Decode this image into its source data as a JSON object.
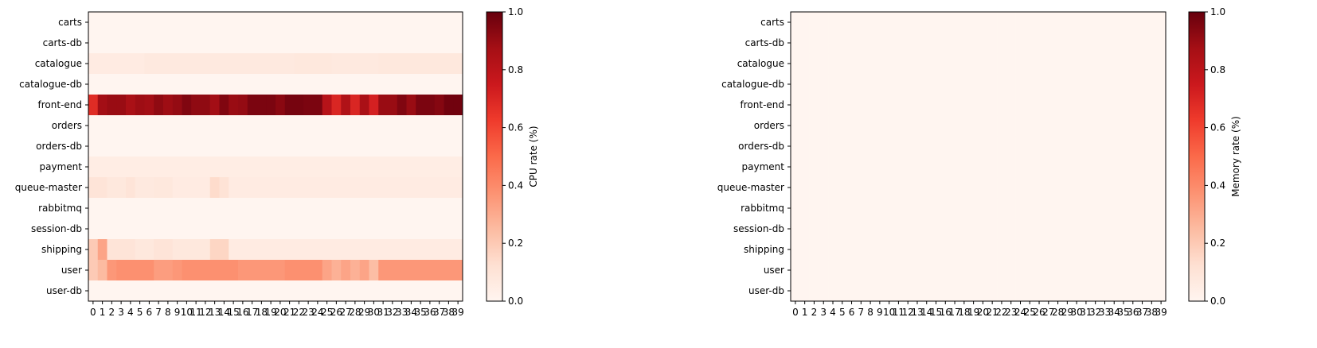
{
  "chart_data": [
    {
      "type": "heatmap",
      "ylabels": [
        "carts",
        "carts-db",
        "catalogue",
        "catalogue-db",
        "front-end",
        "orders",
        "orders-db",
        "payment",
        "queue-master",
        "rabbitmq",
        "session-db",
        "shipping",
        "user",
        "user-db"
      ],
      "xlabels": [
        "0",
        "1",
        "2",
        "3",
        "4",
        "5",
        "6",
        "7",
        "8",
        "9",
        "10",
        "11",
        "12",
        "13",
        "14",
        "15",
        "16",
        "17",
        "18",
        "19",
        "20",
        "21",
        "22",
        "23",
        "24",
        "25",
        "26",
        "27",
        "28",
        "29",
        "30",
        "31",
        "32",
        "33",
        "34",
        "35",
        "36",
        "37",
        "38",
        "39"
      ],
      "colorbar": {
        "label": "CPU rate (%)",
        "min": 0,
        "max": 1,
        "ticks": [
          "0.0",
          "0.2",
          "0.4",
          "0.6",
          "0.8",
          "1.0"
        ]
      },
      "colormap": "Reds",
      "values": [
        [
          0,
          0,
          0,
          0,
          0,
          0,
          0,
          0,
          0,
          0,
          0,
          0,
          0,
          0,
          0,
          0,
          0,
          0,
          0,
          0,
          0,
          0,
          0,
          0,
          0,
          0,
          0,
          0,
          0,
          0,
          0,
          0,
          0,
          0,
          0,
          0,
          0,
          0,
          0,
          0
        ],
        [
          0,
          0,
          0,
          0,
          0,
          0,
          0,
          0,
          0,
          0,
          0,
          0,
          0,
          0,
          0,
          0,
          0,
          0,
          0,
          0,
          0,
          0,
          0,
          0,
          0,
          0,
          0,
          0,
          0,
          0,
          0,
          0,
          0,
          0,
          0,
          0,
          0,
          0,
          0,
          0
        ],
        [
          0.06,
          0.06,
          0.06,
          0.06,
          0.06,
          0.06,
          0.07,
          0.07,
          0.07,
          0.07,
          0.07,
          0.07,
          0.07,
          0.07,
          0.07,
          0.07,
          0.07,
          0.07,
          0.07,
          0.07,
          0.07,
          0.07,
          0.08,
          0.08,
          0.08,
          0.08,
          0.07,
          0.07,
          0.07,
          0.07,
          0.07,
          0.08,
          0.08,
          0.08,
          0.08,
          0.08,
          0.08,
          0.08,
          0.08,
          0.08
        ],
        [
          0,
          0,
          0,
          0,
          0,
          0,
          0,
          0,
          0,
          0,
          0,
          0,
          0,
          0,
          0,
          0,
          0,
          0,
          0,
          0,
          0,
          0,
          0,
          0,
          0,
          0,
          0,
          0,
          0,
          0,
          0,
          0,
          0,
          0,
          0,
          0,
          0,
          0,
          0,
          0
        ],
        [
          0.68,
          0.88,
          0.9,
          0.9,
          0.86,
          0.89,
          0.88,
          0.92,
          0.89,
          0.91,
          0.95,
          0.92,
          0.92,
          0.88,
          0.95,
          0.9,
          0.91,
          0.96,
          0.96,
          0.96,
          0.93,
          0.97,
          0.97,
          0.96,
          0.96,
          0.82,
          0.7,
          0.84,
          0.7,
          0.86,
          0.72,
          0.9,
          0.9,
          0.95,
          0.9,
          0.96,
          0.96,
          0.94,
          0.98,
          0.98
        ],
        [
          0,
          0,
          0,
          0,
          0,
          0,
          0,
          0,
          0,
          0,
          0,
          0,
          0,
          0,
          0,
          0,
          0,
          0,
          0,
          0,
          0,
          0,
          0,
          0,
          0,
          0,
          0,
          0,
          0,
          0,
          0,
          0,
          0,
          0,
          0,
          0,
          0,
          0,
          0,
          0
        ],
        [
          0,
          0,
          0,
          0,
          0,
          0,
          0,
          0,
          0,
          0,
          0,
          0,
          0,
          0,
          0,
          0,
          0,
          0,
          0,
          0,
          0,
          0,
          0,
          0,
          0,
          0,
          0,
          0,
          0,
          0,
          0,
          0,
          0,
          0,
          0,
          0,
          0,
          0,
          0,
          0
        ],
        [
          0.05,
          0.05,
          0.05,
          0.05,
          0.05,
          0.05,
          0.05,
          0.05,
          0.05,
          0.05,
          0.05,
          0.05,
          0.05,
          0.05,
          0.05,
          0.05,
          0.05,
          0.05,
          0.05,
          0.05,
          0.05,
          0.05,
          0.05,
          0.05,
          0.05,
          0.05,
          0.05,
          0.05,
          0.05,
          0.05,
          0.05,
          0.05,
          0.05,
          0.05,
          0.05,
          0.05,
          0.05,
          0.05,
          0.05,
          0.05
        ],
        [
          0.1,
          0.1,
          0.08,
          0.08,
          0.1,
          0.07,
          0.07,
          0.08,
          0.08,
          0.06,
          0.06,
          0.06,
          0.06,
          0.14,
          0.11,
          0.06,
          0.06,
          0.06,
          0.06,
          0.06,
          0.06,
          0.06,
          0.06,
          0.06,
          0.06,
          0.06,
          0.06,
          0.06,
          0.06,
          0.06,
          0.06,
          0.06,
          0.06,
          0.06,
          0.06,
          0.06,
          0.06,
          0.06,
          0.06,
          0.06
        ],
        [
          0,
          0,
          0,
          0,
          0,
          0,
          0,
          0,
          0,
          0,
          0,
          0,
          0,
          0,
          0,
          0,
          0,
          0,
          0,
          0,
          0,
          0,
          0,
          0,
          0,
          0,
          0,
          0,
          0,
          0,
          0,
          0,
          0,
          0,
          0,
          0,
          0,
          0,
          0,
          0
        ],
        [
          0,
          0,
          0,
          0,
          0,
          0,
          0,
          0,
          0,
          0,
          0,
          0,
          0,
          0,
          0,
          0,
          0,
          0,
          0,
          0,
          0,
          0,
          0,
          0,
          0,
          0,
          0,
          0,
          0,
          0,
          0,
          0,
          0,
          0,
          0,
          0,
          0,
          0,
          0,
          0
        ],
        [
          0.2,
          0.32,
          0.1,
          0.1,
          0.1,
          0.08,
          0.08,
          0.1,
          0.1,
          0.08,
          0.08,
          0.08,
          0.08,
          0.16,
          0.16,
          0.06,
          0.06,
          0.06,
          0.06,
          0.06,
          0.06,
          0.06,
          0.06,
          0.06,
          0.06,
          0.06,
          0.06,
          0.06,
          0.06,
          0.06,
          0.06,
          0.06,
          0.06,
          0.06,
          0.06,
          0.06,
          0.06,
          0.06,
          0.06,
          0.06
        ],
        [
          0.2,
          0.25,
          0.36,
          0.38,
          0.38,
          0.38,
          0.38,
          0.34,
          0.34,
          0.36,
          0.38,
          0.38,
          0.38,
          0.38,
          0.38,
          0.38,
          0.36,
          0.36,
          0.36,
          0.36,
          0.36,
          0.38,
          0.38,
          0.38,
          0.38,
          0.32,
          0.28,
          0.32,
          0.28,
          0.32,
          0.24,
          0.36,
          0.36,
          0.36,
          0.36,
          0.36,
          0.36,
          0.36,
          0.36,
          0.36
        ],
        [
          0,
          0,
          0,
          0,
          0,
          0,
          0,
          0,
          0,
          0,
          0,
          0,
          0,
          0,
          0,
          0,
          0,
          0,
          0,
          0,
          0,
          0,
          0,
          0,
          0,
          0,
          0,
          0,
          0,
          0,
          0,
          0,
          0,
          0,
          0,
          0,
          0,
          0,
          0,
          0
        ]
      ]
    },
    {
      "type": "heatmap",
      "ylabels": [
        "carts",
        "carts-db",
        "catalogue",
        "catalogue-db",
        "front-end",
        "orders",
        "orders-db",
        "payment",
        "queue-master",
        "rabbitmq",
        "session-db",
        "shipping",
        "user",
        "user-db"
      ],
      "xlabels": [
        "0",
        "1",
        "2",
        "3",
        "4",
        "5",
        "6",
        "7",
        "8",
        "9",
        "10",
        "11",
        "12",
        "13",
        "14",
        "15",
        "16",
        "17",
        "18",
        "19",
        "20",
        "21",
        "22",
        "23",
        "24",
        "25",
        "26",
        "27",
        "28",
        "29",
        "30",
        "31",
        "32",
        "33",
        "34",
        "35",
        "36",
        "37",
        "38",
        "39"
      ],
      "colorbar": {
        "label": "Memory rate (%)",
        "min": 0,
        "max": 1,
        "ticks": [
          "0.0",
          "0.2",
          "0.4",
          "0.6",
          "0.8",
          "1.0"
        ]
      },
      "colormap": "Reds",
      "values": []
    }
  ]
}
